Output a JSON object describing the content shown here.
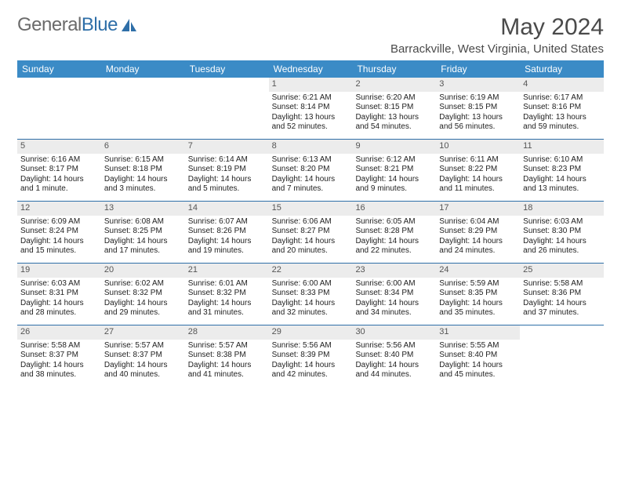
{
  "brand": {
    "part1": "General",
    "part2": "Blue"
  },
  "title": "May 2024",
  "location": "Barrackville, West Virginia, United States",
  "colors": {
    "header_bg": "#3b8bc6",
    "header_text": "#ffffff",
    "daynum_bg": "#ececec",
    "daynum_text": "#555555",
    "week_border": "#2f6fa8",
    "body_text": "#222222",
    "title_text": "#4a4a4a",
    "logo_general": "#6b6b6b",
    "logo_blue": "#2f6fa8"
  },
  "weekdays": [
    "Sunday",
    "Monday",
    "Tuesday",
    "Wednesday",
    "Thursday",
    "Friday",
    "Saturday"
  ],
  "weeks": [
    [
      {
        "n": "",
        "sr": "",
        "ss": "",
        "dl": ""
      },
      {
        "n": "",
        "sr": "",
        "ss": "",
        "dl": ""
      },
      {
        "n": "",
        "sr": "",
        "ss": "",
        "dl": ""
      },
      {
        "n": "1",
        "sr": "Sunrise: 6:21 AM",
        "ss": "Sunset: 8:14 PM",
        "dl": "Daylight: 13 hours and 52 minutes."
      },
      {
        "n": "2",
        "sr": "Sunrise: 6:20 AM",
        "ss": "Sunset: 8:15 PM",
        "dl": "Daylight: 13 hours and 54 minutes."
      },
      {
        "n": "3",
        "sr": "Sunrise: 6:19 AM",
        "ss": "Sunset: 8:15 PM",
        "dl": "Daylight: 13 hours and 56 minutes."
      },
      {
        "n": "4",
        "sr": "Sunrise: 6:17 AM",
        "ss": "Sunset: 8:16 PM",
        "dl": "Daylight: 13 hours and 59 minutes."
      }
    ],
    [
      {
        "n": "5",
        "sr": "Sunrise: 6:16 AM",
        "ss": "Sunset: 8:17 PM",
        "dl": "Daylight: 14 hours and 1 minute."
      },
      {
        "n": "6",
        "sr": "Sunrise: 6:15 AM",
        "ss": "Sunset: 8:18 PM",
        "dl": "Daylight: 14 hours and 3 minutes."
      },
      {
        "n": "7",
        "sr": "Sunrise: 6:14 AM",
        "ss": "Sunset: 8:19 PM",
        "dl": "Daylight: 14 hours and 5 minutes."
      },
      {
        "n": "8",
        "sr": "Sunrise: 6:13 AM",
        "ss": "Sunset: 8:20 PM",
        "dl": "Daylight: 14 hours and 7 minutes."
      },
      {
        "n": "9",
        "sr": "Sunrise: 6:12 AM",
        "ss": "Sunset: 8:21 PM",
        "dl": "Daylight: 14 hours and 9 minutes."
      },
      {
        "n": "10",
        "sr": "Sunrise: 6:11 AM",
        "ss": "Sunset: 8:22 PM",
        "dl": "Daylight: 14 hours and 11 minutes."
      },
      {
        "n": "11",
        "sr": "Sunrise: 6:10 AM",
        "ss": "Sunset: 8:23 PM",
        "dl": "Daylight: 14 hours and 13 minutes."
      }
    ],
    [
      {
        "n": "12",
        "sr": "Sunrise: 6:09 AM",
        "ss": "Sunset: 8:24 PM",
        "dl": "Daylight: 14 hours and 15 minutes."
      },
      {
        "n": "13",
        "sr": "Sunrise: 6:08 AM",
        "ss": "Sunset: 8:25 PM",
        "dl": "Daylight: 14 hours and 17 minutes."
      },
      {
        "n": "14",
        "sr": "Sunrise: 6:07 AM",
        "ss": "Sunset: 8:26 PM",
        "dl": "Daylight: 14 hours and 19 minutes."
      },
      {
        "n": "15",
        "sr": "Sunrise: 6:06 AM",
        "ss": "Sunset: 8:27 PM",
        "dl": "Daylight: 14 hours and 20 minutes."
      },
      {
        "n": "16",
        "sr": "Sunrise: 6:05 AM",
        "ss": "Sunset: 8:28 PM",
        "dl": "Daylight: 14 hours and 22 minutes."
      },
      {
        "n": "17",
        "sr": "Sunrise: 6:04 AM",
        "ss": "Sunset: 8:29 PM",
        "dl": "Daylight: 14 hours and 24 minutes."
      },
      {
        "n": "18",
        "sr": "Sunrise: 6:03 AM",
        "ss": "Sunset: 8:30 PM",
        "dl": "Daylight: 14 hours and 26 minutes."
      }
    ],
    [
      {
        "n": "19",
        "sr": "Sunrise: 6:03 AM",
        "ss": "Sunset: 8:31 PM",
        "dl": "Daylight: 14 hours and 28 minutes."
      },
      {
        "n": "20",
        "sr": "Sunrise: 6:02 AM",
        "ss": "Sunset: 8:32 PM",
        "dl": "Daylight: 14 hours and 29 minutes."
      },
      {
        "n": "21",
        "sr": "Sunrise: 6:01 AM",
        "ss": "Sunset: 8:32 PM",
        "dl": "Daylight: 14 hours and 31 minutes."
      },
      {
        "n": "22",
        "sr": "Sunrise: 6:00 AM",
        "ss": "Sunset: 8:33 PM",
        "dl": "Daylight: 14 hours and 32 minutes."
      },
      {
        "n": "23",
        "sr": "Sunrise: 6:00 AM",
        "ss": "Sunset: 8:34 PM",
        "dl": "Daylight: 14 hours and 34 minutes."
      },
      {
        "n": "24",
        "sr": "Sunrise: 5:59 AM",
        "ss": "Sunset: 8:35 PM",
        "dl": "Daylight: 14 hours and 35 minutes."
      },
      {
        "n": "25",
        "sr": "Sunrise: 5:58 AM",
        "ss": "Sunset: 8:36 PM",
        "dl": "Daylight: 14 hours and 37 minutes."
      }
    ],
    [
      {
        "n": "26",
        "sr": "Sunrise: 5:58 AM",
        "ss": "Sunset: 8:37 PM",
        "dl": "Daylight: 14 hours and 38 minutes."
      },
      {
        "n": "27",
        "sr": "Sunrise: 5:57 AM",
        "ss": "Sunset: 8:37 PM",
        "dl": "Daylight: 14 hours and 40 minutes."
      },
      {
        "n": "28",
        "sr": "Sunrise: 5:57 AM",
        "ss": "Sunset: 8:38 PM",
        "dl": "Daylight: 14 hours and 41 minutes."
      },
      {
        "n": "29",
        "sr": "Sunrise: 5:56 AM",
        "ss": "Sunset: 8:39 PM",
        "dl": "Daylight: 14 hours and 42 minutes."
      },
      {
        "n": "30",
        "sr": "Sunrise: 5:56 AM",
        "ss": "Sunset: 8:40 PM",
        "dl": "Daylight: 14 hours and 44 minutes."
      },
      {
        "n": "31",
        "sr": "Sunrise: 5:55 AM",
        "ss": "Sunset: 8:40 PM",
        "dl": "Daylight: 14 hours and 45 minutes."
      },
      {
        "n": "",
        "sr": "",
        "ss": "",
        "dl": ""
      }
    ]
  ]
}
